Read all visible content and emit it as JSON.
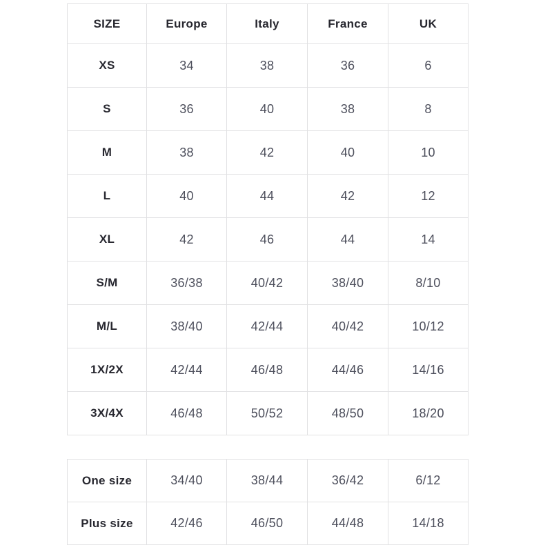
{
  "colors": {
    "background": "#ffffff",
    "border": "#e1e1e3",
    "header_text": "#27272f",
    "cell_text": "#4d4f5c"
  },
  "main_table": {
    "headers": [
      "SIZE",
      "Europe",
      "Italy",
      "France",
      "UK"
    ],
    "rows": [
      {
        "label": "XS",
        "values": [
          "34",
          "38",
          "36",
          "6"
        ]
      },
      {
        "label": "S",
        "values": [
          "36",
          "40",
          "38",
          "8"
        ]
      },
      {
        "label": "M",
        "values": [
          "38",
          "42",
          "40",
          "10"
        ]
      },
      {
        "label": "L",
        "values": [
          "40",
          "44",
          "42",
          "12"
        ]
      },
      {
        "label": "XL",
        "values": [
          "42",
          "46",
          "44",
          "14"
        ]
      },
      {
        "label": "S/M",
        "values": [
          "36/38",
          "40/42",
          "38/40",
          "8/10"
        ]
      },
      {
        "label": "M/L",
        "values": [
          "38/40",
          "42/44",
          "40/42",
          "10/12"
        ]
      },
      {
        "label": "1X/2X",
        "values": [
          "42/44",
          "46/48",
          "44/46",
          "14/16"
        ]
      },
      {
        "label": "3X/4X",
        "values": [
          "46/48",
          "50/52",
          "48/50",
          "18/20"
        ]
      }
    ]
  },
  "secondary_table": {
    "rows": [
      {
        "label": "One size",
        "values": [
          "34/40",
          "38/44",
          "36/42",
          "6/12"
        ]
      },
      {
        "label": "Plus size",
        "values": [
          "42/46",
          "46/50",
          "44/48",
          "14/18"
        ]
      }
    ]
  }
}
